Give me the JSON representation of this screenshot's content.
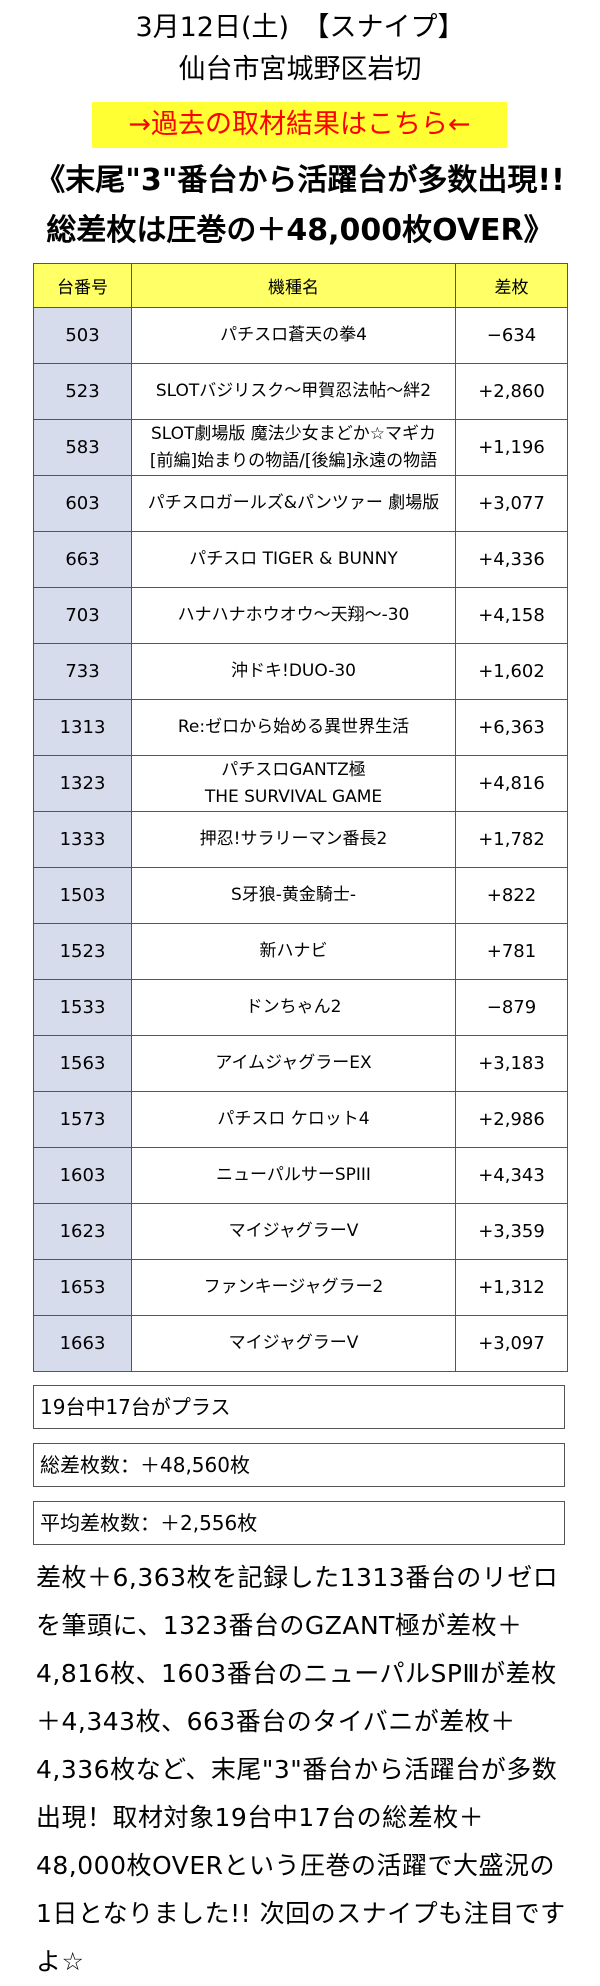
{
  "header": {
    "date_line": "3月12日(土)　【スナイプ】",
    "location": "仙台市宮城野区岩切",
    "link_label": "→過去の取材結果はこちら←"
  },
  "headline": {
    "line1": "《末尾\"3\"番台から活躍台が多数出現!!",
    "line2": "総差枚は圧巻の＋48,000枚OVER》"
  },
  "table": {
    "columns": [
      "台番号",
      "機種名",
      "差枚"
    ],
    "rows": [
      {
        "no": "503",
        "name": [
          "パチスロ蒼天の拳4"
        ],
        "diff": "−634"
      },
      {
        "no": "523",
        "name": [
          "SLOTバジリスク〜甲賀忍法帖〜絆2"
        ],
        "diff": "+2,860"
      },
      {
        "no": "583",
        "name": [
          "SLOT劇場版 魔法少女まどか☆マギカ",
          "[前編]始まりの物語/[後編]永遠の物語"
        ],
        "diff": "+1,196"
      },
      {
        "no": "603",
        "name": [
          "パチスロガールズ&パンツァー 劇場版"
        ],
        "diff": "+3,077"
      },
      {
        "no": "663",
        "name": [
          "パチスロ TIGER & BUNNY"
        ],
        "diff": "+4,336"
      },
      {
        "no": "703",
        "name": [
          "ハナハナホウオウ〜天翔〜-30"
        ],
        "diff": "+4,158"
      },
      {
        "no": "733",
        "name": [
          "沖ドキ!DUO-30"
        ],
        "diff": "+1,602"
      },
      {
        "no": "1313",
        "name": [
          "Re:ゼロから始める異世界生活"
        ],
        "diff": "+6,363"
      },
      {
        "no": "1323",
        "name": [
          "パチスロGANTZ極",
          "THE SURVIVAL GAME"
        ],
        "diff": "+4,816"
      },
      {
        "no": "1333",
        "name": [
          "押忍!サラリーマン番長2"
        ],
        "diff": "+1,782"
      },
      {
        "no": "1503",
        "name": [
          "S牙狼-黄金騎士-"
        ],
        "diff": "+822"
      },
      {
        "no": "1523",
        "name": [
          "新ハナビ"
        ],
        "diff": "+781"
      },
      {
        "no": "1533",
        "name": [
          "ドンちゃん2"
        ],
        "diff": "−879"
      },
      {
        "no": "1563",
        "name": [
          "アイムジャグラーEX"
        ],
        "diff": "+3,183"
      },
      {
        "no": "1573",
        "name": [
          "パチスロ ケロット4"
        ],
        "diff": "+2,986"
      },
      {
        "no": "1603",
        "name": [
          "ニューパルサーSPIII"
        ],
        "diff": "+4,343"
      },
      {
        "no": "1623",
        "name": [
          "マイジャグラーV"
        ],
        "diff": "+3,359"
      },
      {
        "no": "1653",
        "name": [
          "ファンキージャグラー2"
        ],
        "diff": "+1,312"
      },
      {
        "no": "1663",
        "name": [
          "マイジャグラーV"
        ],
        "diff": "+3,097"
      }
    ]
  },
  "summary": {
    "plus_count": "19台中17台がプラス",
    "total": "総差枚数：＋48,560枚",
    "average": "平均差枚数：＋2,556枚"
  },
  "body_text": "差枚＋6,363枚を記録した1313番台のリゼロを筆頭に、1323番台のGZANT極が差枚＋4,816枚、1603番台のニューパルSPⅢが差枚＋4,343枚、663番台のタイバニが差枚＋4,336枚など、末尾\"3\"番台から活躍台が多数出現！取材対象19台中17台の総差枚＋48,000枚OVERという圧巻の活躍で大盛況の1日となりました!! 次回のスナイプも注目ですよ☆",
  "colors": {
    "link_bg": "#ffff33",
    "link_text": "#ff0000",
    "table_header_bg": "#ffff66",
    "number_cell_bg": "#d7dced"
  }
}
